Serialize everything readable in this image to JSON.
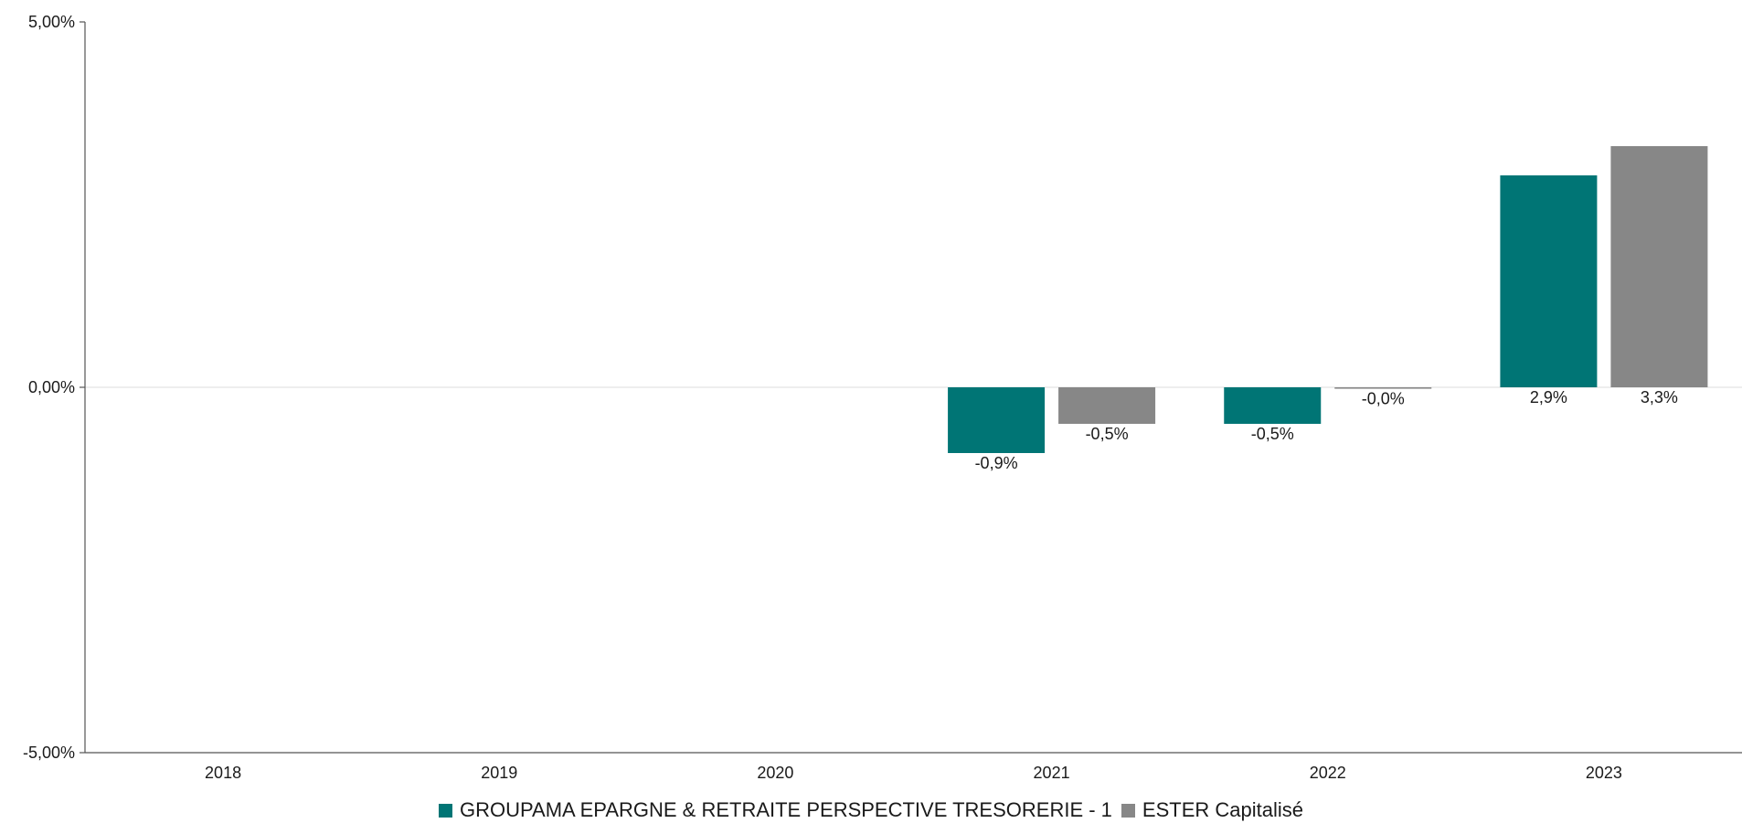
{
  "chart_data": {
    "type": "bar",
    "categories": [
      "2018",
      "2019",
      "2020",
      "2021",
      "2022",
      "2023"
    ],
    "series": [
      {
        "name": "GROUPAMA EPARGNE & RETRAITE PERSPECTIVE TRESORERIE - 1",
        "color": "#007575",
        "values": [
          null,
          null,
          null,
          -0.9,
          -0.5,
          2.9
        ],
        "labels": [
          "",
          "",
          "",
          "-0,9%",
          "-0,5%",
          "2,9%"
        ]
      },
      {
        "name": "ESTER Capitalisé",
        "color": "#878787",
        "values": [
          null,
          null,
          null,
          -0.5,
          -0.02,
          3.3
        ],
        "labels": [
          "",
          "",
          "",
          "-0,5%",
          "-0,0%",
          "3,3%"
        ]
      }
    ],
    "ylim": [
      -5,
      5
    ],
    "yticks": [
      {
        "value": 5,
        "label": "5,00%"
      },
      {
        "value": 0,
        "label": "0,00%"
      },
      {
        "value": -5,
        "label": "-5,00%"
      }
    ],
    "xlabel": "",
    "ylabel": "",
    "grid": false,
    "legend_position": "bottom"
  }
}
